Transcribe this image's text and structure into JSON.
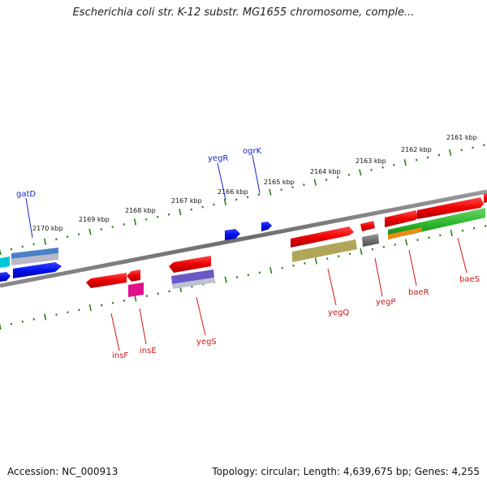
{
  "header": {
    "title": "Escherichia coli str. K-12 substr. MG1655 chromosome, comple..."
  },
  "footer": {
    "accession": "Accession: NC_000913",
    "topology": "Topology: circular; Length: 4,639,675 bp; Genes: 4,255"
  },
  "colors": {
    "backbone": "#7a7a7a",
    "tick": "#2e7d1a",
    "forward_label": "#1a22c8",
    "reverse_label": "#d41414"
  },
  "scale_labels": [
    "2161 kbp",
    "2162 kbp",
    "2163 kbp",
    "2164 kbp",
    "2165 kbp",
    "2166 kbp",
    "2167 kbp",
    "2168 kbp",
    "2169 kbp",
    "2170 kbp"
  ],
  "forward_genes": [
    {
      "label": "gatD",
      "color": "#1a22c8"
    },
    {
      "label": "yegR",
      "color": "#1a22c8"
    },
    {
      "label": "ogrK",
      "color": "#1a22c8"
    }
  ],
  "reverse_genes": [
    {
      "label": "insF",
      "color": "#d41414"
    },
    {
      "label": "insE",
      "color": "#d41414"
    },
    {
      "label": "yegS",
      "color": "#d41414"
    },
    {
      "label": "yegQ",
      "color": "#d41414"
    },
    {
      "label": "yegP",
      "color": "#d41414"
    },
    {
      "label": "baeR",
      "color": "#d41414"
    },
    {
      "label": "baeS",
      "color": "#d41414"
    }
  ]
}
